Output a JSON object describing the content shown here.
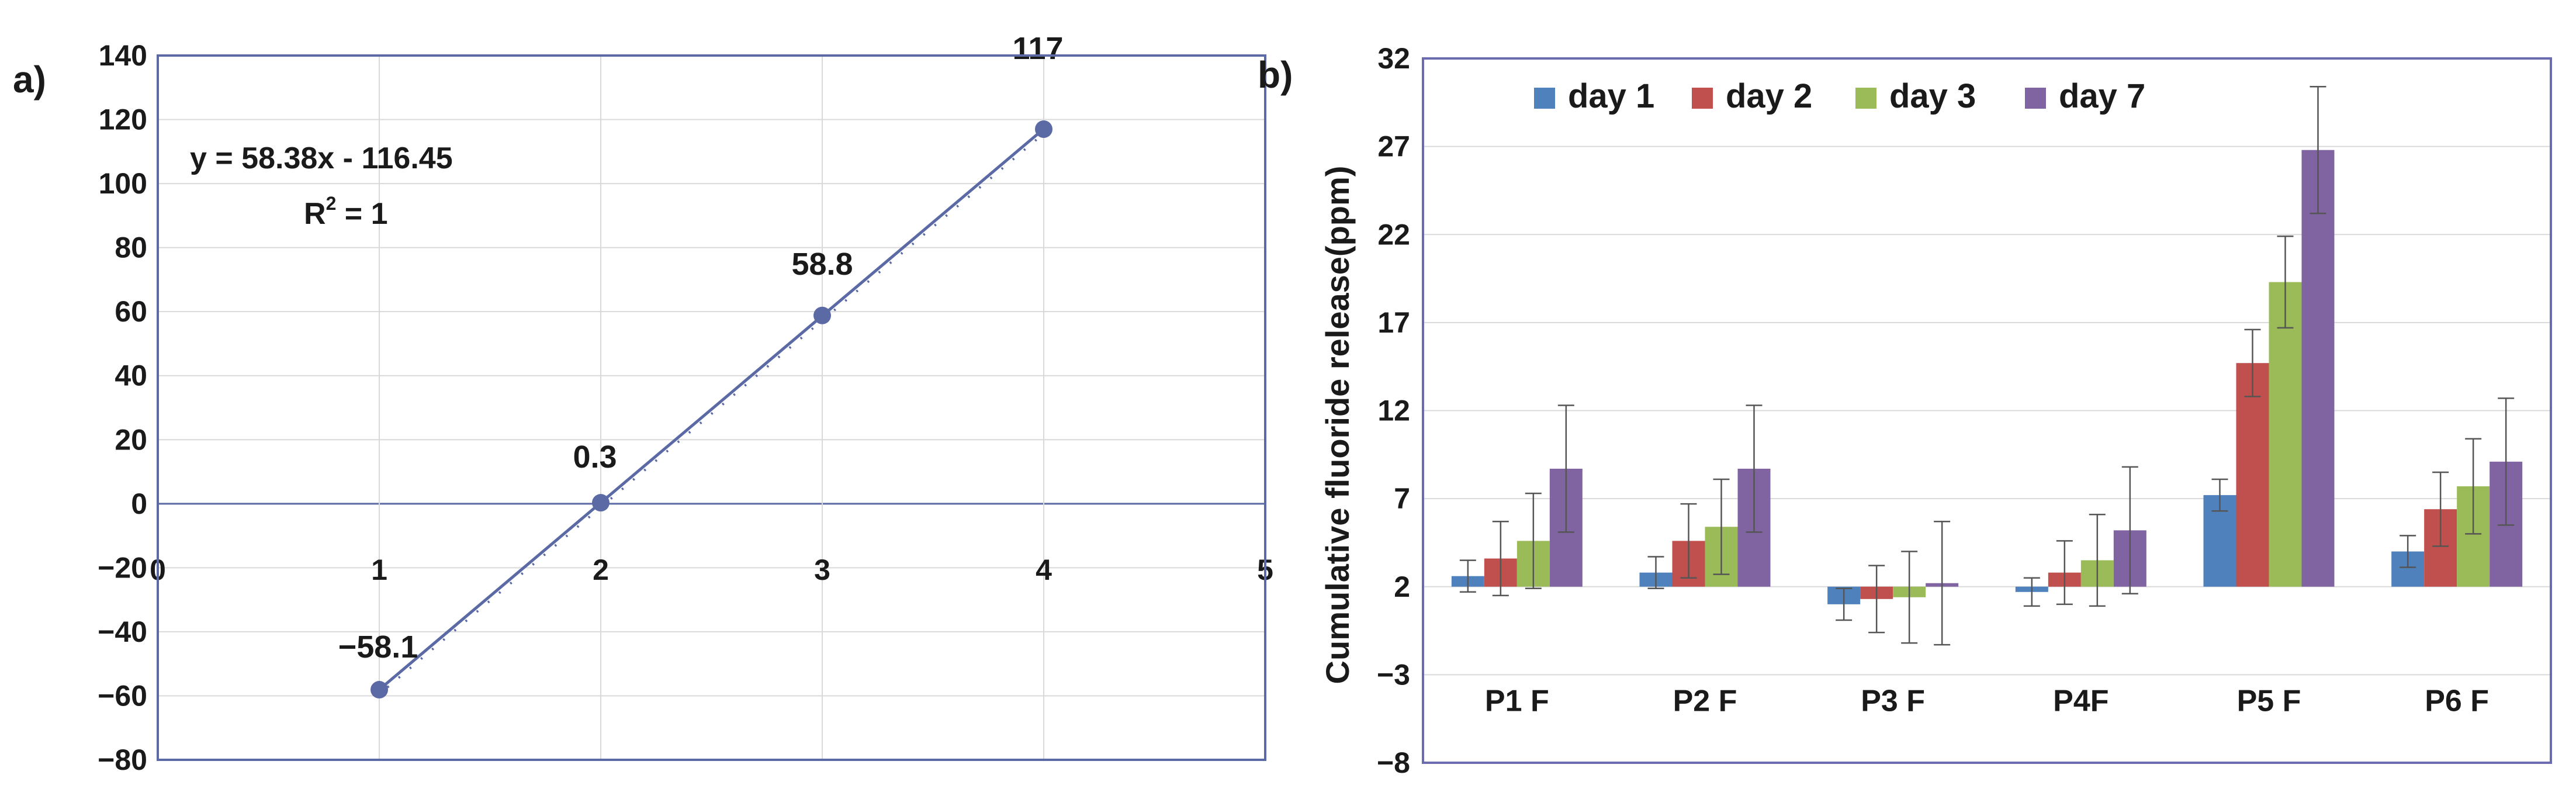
{
  "chart_data": [
    {
      "type": "scatter",
      "panel_label": "a)",
      "x": [
        1,
        2,
        3,
        4
      ],
      "y": [
        -58.1,
        0.3,
        58.8,
        117
      ],
      "point_labels": [
        "−58.1",
        "0.3",
        "58.8",
        "117"
      ],
      "trendline": {
        "slope": 58.38,
        "intercept": -116.45
      },
      "equation": "y = 58.38x - 116.45",
      "r2_label": "R",
      "r2_sup": "2",
      "r2_value": " = 1",
      "xlim": [
        0,
        5
      ],
      "ylim": [
        -80,
        140
      ],
      "x_ticks": [
        0,
        1,
        2,
        3,
        4,
        5
      ],
      "x_tick_labels": [
        "0",
        "1",
        "2",
        "3",
        "4",
        "5"
      ],
      "y_ticks": [
        -80,
        -60,
        -40,
        -20,
        0,
        20,
        40,
        60,
        80,
        100,
        120,
        140
      ],
      "y_tick_labels": [
        "−80",
        "−60",
        "−40",
        "−20",
        "0",
        "20",
        "40",
        "60",
        "80",
        "100",
        "120",
        "140"
      ],
      "grid": true,
      "series_color": "#5b6aa5"
    },
    {
      "type": "bar",
      "panel_label": "b)",
      "ylabel": "Cumulative fluoride release(ppm)",
      "ylim": [
        -8,
        32
      ],
      "y_ticks": [
        -8,
        -3,
        2,
        7,
        12,
        17,
        22,
        27,
        32
      ],
      "y_tick_labels": [
        "−8",
        "−3",
        "2",
        "7",
        "12",
        "17",
        "22",
        "27",
        "32"
      ],
      "bar_base": 2,
      "categories": [
        "P1 F",
        "P2 F",
        "P3 F",
        "P4F",
        "P5 F",
        "P6 F"
      ],
      "series": [
        {
          "name": "day 1",
          "color": "#4f81bd",
          "values": [
            2.6,
            2.8,
            1.0,
            1.7,
            7.2,
            4.0
          ],
          "errors": [
            0.9,
            0.9,
            0.9,
            0.8,
            0.9,
            0.9
          ]
        },
        {
          "name": "day 2",
          "color": "#c0504d",
          "values": [
            3.6,
            4.6,
            1.3,
            2.8,
            14.7,
            6.4
          ],
          "errors": [
            2.1,
            2.1,
            1.9,
            1.8,
            1.9,
            2.1
          ]
        },
        {
          "name": "day 3",
          "color": "#9bbb59",
          "values": [
            4.6,
            5.4,
            1.4,
            3.5,
            19.3,
            7.7
          ],
          "errors": [
            2.7,
            2.7,
            2.6,
            2.6,
            2.6,
            2.7
          ]
        },
        {
          "name": "day 7",
          "color": "#8064a2",
          "values": [
            8.7,
            8.7,
            2.2,
            5.2,
            26.8,
            9.1
          ],
          "errors": [
            3.6,
            3.6,
            3.5,
            3.6,
            3.6,
            3.6
          ]
        }
      ],
      "legend_position": "top-left",
      "grid": true
    }
  ]
}
